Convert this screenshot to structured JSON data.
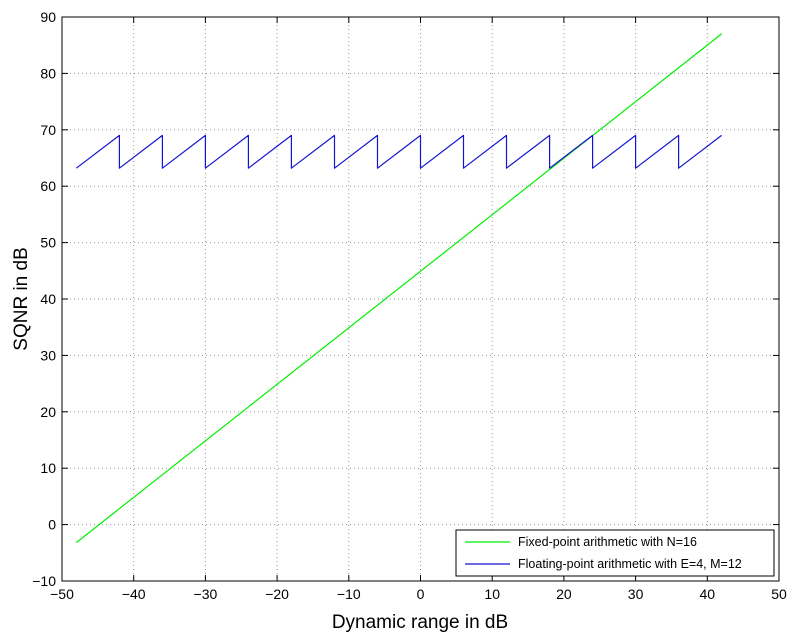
{
  "chart_data": {
    "type": "line",
    "title": "",
    "xlabel": "Dynamic range in dB",
    "ylabel": "SQNR in dB",
    "xlim": [
      -50,
      50
    ],
    "ylim": [
      -10,
      90
    ],
    "xticks": [
      -50,
      -40,
      -30,
      -20,
      -10,
      0,
      10,
      20,
      30,
      40,
      50
    ],
    "yticks": [
      -10,
      0,
      10,
      20,
      30,
      40,
      50,
      60,
      70,
      80,
      90
    ],
    "xtick_labels": [
      "−50",
      "−40",
      "−30",
      "−20",
      "−10",
      "0",
      "10",
      "20",
      "30",
      "40",
      "50"
    ],
    "ytick_labels": [
      "−10",
      "0",
      "10",
      "20",
      "30",
      "40",
      "50",
      "60",
      "70",
      "80",
      "90"
    ],
    "grid": true,
    "legend_position": "bottom-right",
    "series": [
      {
        "name": "Fixed-point arithmetic with N=16",
        "color": "#00ee00",
        "x": [
          -48,
          42
        ],
        "y": [
          -3.2,
          87
        ]
      },
      {
        "name": "Floating-point arithmetic with E=4, M=12",
        "color": "#1515d0",
        "x": [
          -48,
          -42,
          -42,
          -36,
          -36,
          -30,
          -30,
          -24,
          -24,
          -18,
          -18,
          -12,
          -12,
          -6,
          -6,
          0,
          0,
          6,
          6,
          12,
          12,
          18,
          18,
          24,
          24,
          30,
          30,
          36,
          36,
          42
        ],
        "y": [
          63.2,
          69,
          63.2,
          69,
          63.2,
          69,
          63.2,
          69,
          63.2,
          69,
          63.2,
          69,
          63.2,
          69,
          63.2,
          69,
          63.2,
          69,
          63.2,
          69,
          63.2,
          69,
          63.2,
          69,
          63.2,
          69,
          63.2,
          69,
          63.2,
          69
        ]
      }
    ]
  }
}
